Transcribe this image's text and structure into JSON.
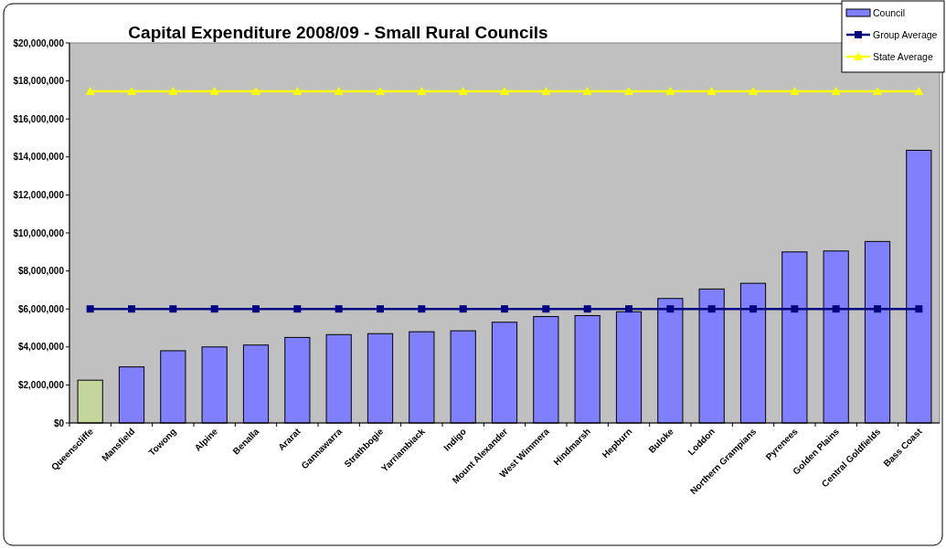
{
  "chart_data": {
    "type": "bar",
    "title": "Capital Expenditure 2008/09 - Small Rural Councils",
    "categories": [
      "Queenscliffe",
      "Mansfield",
      "Towong",
      "Alpine",
      "Benalla",
      "Ararat",
      "Gannawarra",
      "Strathbogie",
      "Yarriambiack",
      "Indigo",
      "Mount Alexander",
      "West Wimmera",
      "Hindmarsh",
      "Hepburn",
      "Buloke",
      "Loddon",
      "Northern Grampians",
      "Pyrenees",
      "Golden Plains",
      "Central Goldfields",
      "Bass Coast"
    ],
    "series": [
      {
        "name": "Council",
        "color": "#8080ff",
        "colors": [
          "#c3d69b",
          "#8080ff",
          "#8080ff",
          "#8080ff",
          "#8080ff",
          "#8080ff",
          "#8080ff",
          "#8080ff",
          "#8080ff",
          "#8080ff",
          "#8080ff",
          "#8080ff",
          "#8080ff",
          "#8080ff",
          "#8080ff",
          "#8080ff",
          "#8080ff",
          "#8080ff",
          "#8080ff",
          "#8080ff",
          "#8080ff"
        ],
        "values": [
          2250000,
          2950000,
          3800000,
          4000000,
          4100000,
          4500000,
          4650000,
          4700000,
          4800000,
          4850000,
          5300000,
          5600000,
          5650000,
          5850000,
          6550000,
          7050000,
          7350000,
          9000000,
          9050000,
          9550000,
          14350000
        ]
      },
      {
        "name": "Group Average",
        "type": "line",
        "color": "#000080",
        "marker": "square",
        "values": [
          6000000,
          6000000,
          6000000,
          6000000,
          6000000,
          6000000,
          6000000,
          6000000,
          6000000,
          6000000,
          6000000,
          6000000,
          6000000,
          6000000,
          6000000,
          6000000,
          6000000,
          6000000,
          6000000,
          6000000,
          6000000
        ]
      },
      {
        "name": "State Average",
        "type": "line",
        "color": "#ffff00",
        "marker": "triangle",
        "values": [
          17450000,
          17450000,
          17450000,
          17450000,
          17450000,
          17450000,
          17450000,
          17450000,
          17450000,
          17450000,
          17450000,
          17450000,
          17450000,
          17450000,
          17450000,
          17450000,
          17450000,
          17450000,
          17450000,
          17450000,
          17450000
        ]
      }
    ],
    "ylim": [
      0,
      20000000
    ],
    "yticks": [
      {
        "value": 0,
        "label": "$0"
      },
      {
        "value": 2000000,
        "label": "$2,000,000"
      },
      {
        "value": 4000000,
        "label": "$4,000,000"
      },
      {
        "value": 6000000,
        "label": "$6,000,000"
      },
      {
        "value": 8000000,
        "label": "$8,000,000"
      },
      {
        "value": 10000000,
        "label": "$10,000,000"
      },
      {
        "value": 12000000,
        "label": "$12,000,000"
      },
      {
        "value": 14000000,
        "label": "$14,000,000"
      },
      {
        "value": 16000000,
        "label": "$16,000,000"
      },
      {
        "value": 18000000,
        "label": "$18,000,000"
      },
      {
        "value": 20000000,
        "label": "$20,000,000"
      }
    ],
    "grid": false,
    "legend": "top right"
  }
}
